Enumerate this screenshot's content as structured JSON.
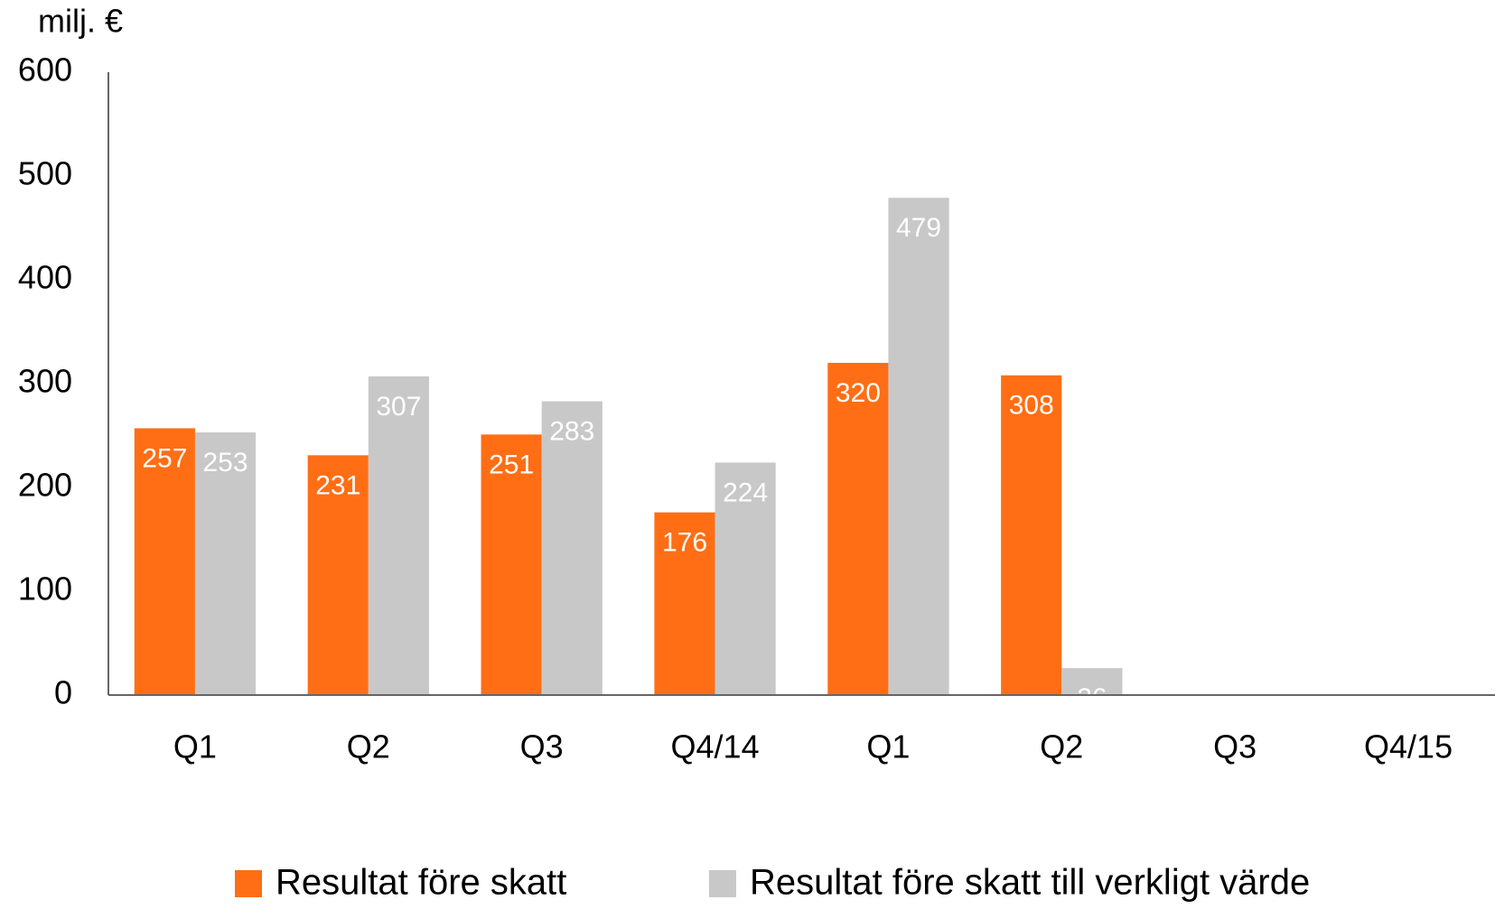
{
  "chart_data": {
    "type": "bar",
    "y_axis_label": "milj. €",
    "categories": [
      "Q1",
      "Q2",
      "Q3",
      "Q4/14",
      "Q1",
      "Q2",
      "Q3",
      "Q4/15"
    ],
    "series": [
      {
        "name": "Resultat före skatt",
        "color": "#ff6e14",
        "values": [
          257,
          231,
          251,
          176,
          320,
          308,
          null,
          null
        ]
      },
      {
        "name": "Resultat före skatt till verkligt värde",
        "color": "#c8c8c8",
        "values": [
          253,
          307,
          283,
          224,
          479,
          26,
          null,
          null
        ]
      }
    ],
    "ylim": [
      0,
      600
    ],
    "yticks": [
      0,
      100,
      200,
      300,
      400,
      500,
      600
    ],
    "grid": false,
    "legend": "bottom"
  }
}
